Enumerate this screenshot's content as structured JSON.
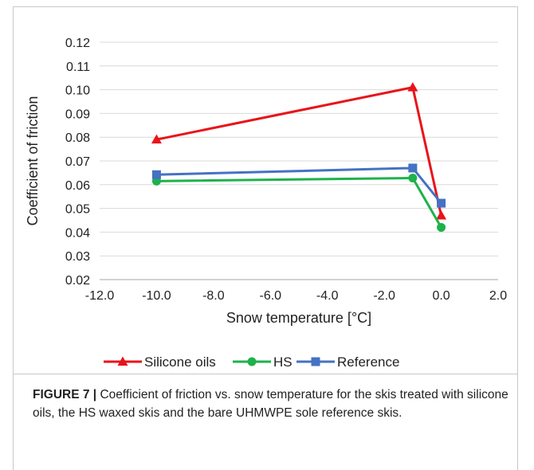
{
  "chart_data": {
    "type": "line",
    "xlabel": "Snow temperature [°C]",
    "ylabel": "Coefficient of friction",
    "xlim": [
      -12.0,
      2.0
    ],
    "ylim": [
      0.02,
      0.12
    ],
    "x_ticks": [
      -12.0,
      -10.0,
      -8.0,
      -6.0,
      -4.0,
      -2.0,
      0.0,
      2.0
    ],
    "x_tick_labels": [
      "-12.0",
      "-10.0",
      "-8.0",
      "-6.0",
      "-4.0",
      "-2.0",
      "0.0",
      "2.0"
    ],
    "y_ticks": [
      0.02,
      0.03,
      0.04,
      0.05,
      0.06,
      0.07,
      0.08,
      0.09,
      0.1,
      0.11,
      0.12
    ],
    "y_tick_labels": [
      "0.02",
      "0.03",
      "0.04",
      "0.05",
      "0.06",
      "0.07",
      "0.08",
      "0.09",
      "0.10",
      "0.11",
      "0.12"
    ],
    "grid": "horizontal",
    "legend_position": "bottom",
    "series": [
      {
        "name": "Silicone oils",
        "color": "#e8141b",
        "marker": "triangle",
        "x": [
          -10.0,
          -1.0,
          0.0
        ],
        "y": [
          0.079,
          0.101,
          0.047
        ]
      },
      {
        "name": "HS",
        "color": "#1db24b",
        "marker": "circle",
        "x": [
          -10.0,
          -1.0,
          0.0
        ],
        "y": [
          0.0615,
          0.0628,
          0.042
        ]
      },
      {
        "name": "Reference",
        "color": "#4472c4",
        "marker": "square",
        "x": [
          -10.0,
          -1.0,
          0.0
        ],
        "y": [
          0.0642,
          0.067,
          0.0522
        ]
      }
    ]
  },
  "caption": {
    "label": "FIGURE 7 |",
    "text": " Coefficient of friction vs. snow temperature for the skis treated with silicone oils, the HS waxed skis and the bare UHMWPE sole reference skis."
  }
}
